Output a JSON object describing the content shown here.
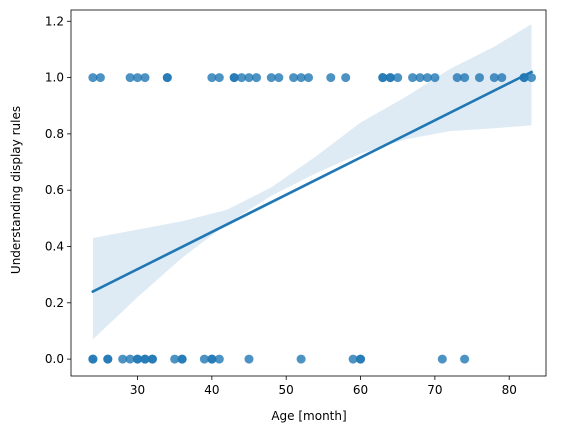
{
  "chart_data": {
    "type": "scatter",
    "title": "",
    "xlabel": "Age [month]",
    "ylabel": "Understanding display rules",
    "xlim": [
      21.05,
      84.95
    ],
    "ylim": [
      -0.06,
      1.24
    ],
    "x_ticks": [
      30,
      40,
      50,
      60,
      70,
      80
    ],
    "y_ticks": [
      0.0,
      0.2,
      0.4,
      0.6,
      0.8,
      1.0,
      1.2
    ],
    "grid": false,
    "legend": "none",
    "colors": {
      "points": "#1f77b4",
      "regression_line": "#1f77b4",
      "confidence_band": "#1f77b4"
    },
    "series": [
      {
        "kind": "points",
        "x": [
          24,
          25,
          29,
          30,
          31,
          34,
          34,
          40,
          41,
          43,
          43,
          44,
          45,
          46,
          48,
          49,
          51,
          52,
          53,
          56,
          58,
          63,
          63,
          64,
          64,
          65,
          67,
          68,
          69,
          70,
          73,
          74,
          76,
          78,
          79,
          82,
          82,
          83,
          24,
          24,
          26,
          26,
          28,
          29,
          30,
          30,
          31,
          31,
          32,
          32,
          35,
          36,
          36,
          39,
          40,
          40,
          41,
          45,
          52,
          59,
          60,
          60,
          71,
          74
        ],
        "y": [
          1,
          1,
          1,
          1,
          1,
          1,
          1,
          1,
          1,
          1,
          1,
          1,
          1,
          1,
          1,
          1,
          1,
          1,
          1,
          1,
          1,
          1,
          1,
          1,
          1,
          1,
          1,
          1,
          1,
          1,
          1,
          1,
          1,
          1,
          1,
          1,
          1,
          1,
          0,
          0,
          0,
          0,
          0,
          0,
          0,
          0,
          0,
          0,
          0,
          0,
          0,
          0,
          0,
          0,
          0,
          0,
          0,
          0,
          0,
          0,
          0,
          0,
          0,
          0
        ]
      },
      {
        "kind": "regression_line",
        "x": [
          24,
          83
        ],
        "y": [
          0.24,
          1.02
        ]
      },
      {
        "kind": "confidence_band",
        "x": [
          24,
          30,
          36,
          42,
          48,
          54,
          60,
          66,
          72,
          78,
          83
        ],
        "lower": [
          0.07,
          0.22,
          0.36,
          0.48,
          0.58,
          0.66,
          0.73,
          0.78,
          0.81,
          0.82,
          0.83
        ],
        "upper": [
          0.43,
          0.46,
          0.49,
          0.53,
          0.61,
          0.72,
          0.84,
          0.93,
          1.03,
          1.11,
          1.19
        ]
      }
    ]
  }
}
